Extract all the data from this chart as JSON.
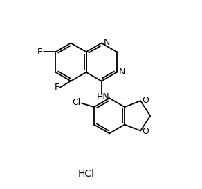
{
  "background_color": "#ffffff",
  "line_color": "#000000",
  "lw": 1.3,
  "fs": 9.0,
  "bl": 0.095,
  "quinazoline": {
    "c4a": [
      0.42,
      0.62
    ],
    "c8a": [
      0.42,
      0.73
    ]
  },
  "labels": {
    "N1": "N",
    "N3": "N",
    "F7": "F",
    "F5": "F",
    "HN": "HN",
    "Cl": "Cl",
    "O1": "O",
    "O2": "O",
    "HCl": "HCl"
  }
}
